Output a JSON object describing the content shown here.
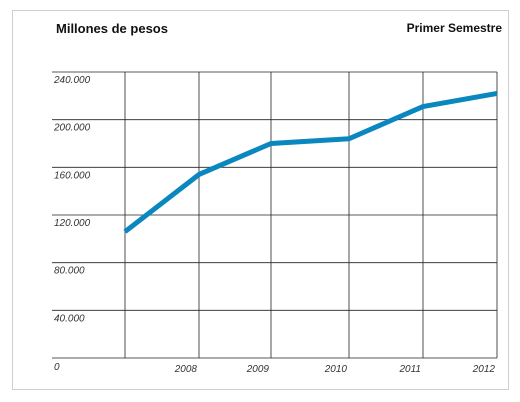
{
  "chart_data": {
    "type": "line",
    "title": "Millones de pesos",
    "subtitle": "Primer Semestre",
    "xlabel": "",
    "ylabel": "",
    "x_tick_labels": [
      "2008",
      "2009",
      "2010",
      "2011",
      "2012"
    ],
    "y_tick_labels": [
      "240.000",
      "200.000",
      "160.000",
      "120.000",
      "80.000",
      "40.000"
    ],
    "origin_label": "0",
    "ylim": [
      0,
      240000
    ],
    "grid": true,
    "colors": {
      "series": "#0a87bf",
      "grid": "#222222"
    },
    "series": [
      {
        "x": [
          "2007",
          "2008",
          "2009",
          "2010",
          "2011",
          "2012"
        ],
        "values": [
          106000,
          154000,
          180000,
          184000,
          211000,
          222000
        ]
      }
    ]
  }
}
